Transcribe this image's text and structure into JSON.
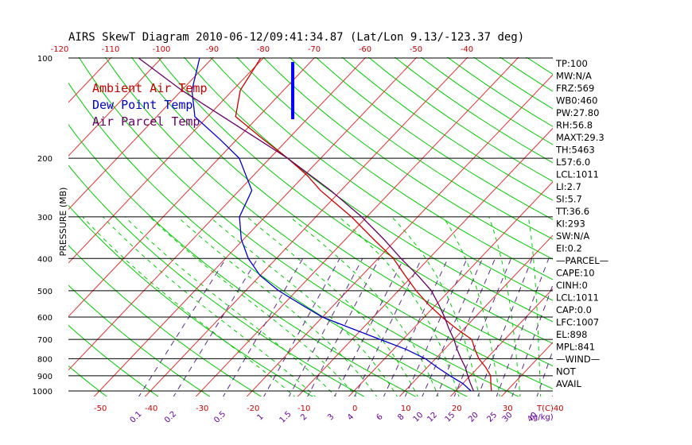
{
  "title": "AIRS SkewT Diagram 2010-06-12/09:41:34.87 (Lat/Lon 9.13/-123.37 deg)",
  "colors": {
    "ambient": "#cc0000",
    "dewpoint": "#0000cc",
    "parcel": "#660066",
    "grid_green": "#00cc00",
    "isotherm_red": "#dd3333",
    "mixing_purple": "#5a2a8a",
    "axis_red": "#cc0000",
    "mixing_label": "#660099",
    "isobar": "#000000"
  },
  "legend": {
    "ambient": "Ambient Air Temp",
    "dewpoint": "Dew Point Temp",
    "parcel": "Air Parcel Temp"
  },
  "chart_data": {
    "type": "line",
    "title": "AIRS SkewT Diagram 2010-06-12/09:41:34.87 (Lat/Lon 9.13/-123.37 deg)",
    "ylabel": "PRESSURE (MB)",
    "xlabel": "T(C)",
    "mixing_ratio_unit": "(g/kg)",
    "pressure_range": [
      1000,
      100
    ],
    "y_scale": "log",
    "pressure_levels": [
      100,
      200,
      300,
      400,
      500,
      600,
      700,
      800,
      900,
      1000
    ],
    "top_temp_ticks": [
      -120,
      -110,
      -100,
      -90,
      -80,
      -70,
      -60,
      -50,
      -40
    ],
    "bottom_temp_ticks": [
      -50,
      -40,
      -30,
      -20,
      -10,
      0,
      10,
      20,
      30,
      40
    ],
    "bottom_temp_labels": [
      "-50",
      "-40",
      "-30",
      "-20",
      "-10",
      "0",
      "10",
      "20",
      "30",
      "40"
    ],
    "mixing_ratio_labels": [
      "0.1",
      "0.2",
      "0.5",
      "1",
      "1.5",
      "2",
      "3",
      "4",
      "6",
      "8",
      "10",
      "12",
      "15",
      "20",
      "25",
      "30",
      "40"
    ],
    "series": [
      {
        "name": "Ambient Air Temp",
        "points": [
          [
            1000,
            27.0
          ],
          [
            950,
            25.5
          ],
          [
            900,
            24.0
          ],
          [
            850,
            21.5
          ],
          [
            800,
            18.5
          ],
          [
            750,
            16.0
          ],
          [
            700,
            13.5
          ],
          [
            650,
            8.5
          ],
          [
            600,
            3.5
          ],
          [
            550,
            -1.5
          ],
          [
            500,
            -6.5
          ],
          [
            450,
            -11.5
          ],
          [
            400,
            -17.0
          ],
          [
            350,
            -24.5
          ],
          [
            300,
            -33.0
          ],
          [
            250,
            -44.0
          ],
          [
            225,
            -49.5
          ],
          [
            200,
            -56.5
          ],
          [
            175,
            -65.0
          ],
          [
            150,
            -74.5
          ],
          [
            125,
            -78.5
          ],
          [
            100,
            -80.5
          ]
        ]
      },
      {
        "name": "Dew Point Temp",
        "points": [
          [
            1000,
            23.0
          ],
          [
            950,
            20.0
          ],
          [
            900,
            16.0
          ],
          [
            850,
            12.0
          ],
          [
            800,
            8.0
          ],
          [
            750,
            2.5
          ],
          [
            700,
            -4.5
          ],
          [
            650,
            -12.0
          ],
          [
            600,
            -20.0
          ],
          [
            550,
            -26.5
          ],
          [
            500,
            -33.5
          ],
          [
            450,
            -40.0
          ],
          [
            400,
            -45.5
          ],
          [
            350,
            -50.5
          ],
          [
            300,
            -55.0
          ],
          [
            250,
            -57.5
          ],
          [
            200,
            -66.0
          ],
          [
            175,
            -73.5
          ],
          [
            150,
            -82.5
          ],
          [
            125,
            -88.0
          ],
          [
            100,
            -92.5
          ]
        ]
      },
      {
        "name": "Air Parcel Temp",
        "points": [
          [
            1000,
            23.5
          ],
          [
            950,
            21.5
          ],
          [
            900,
            19.5
          ],
          [
            850,
            17.5
          ],
          [
            800,
            15.0
          ],
          [
            750,
            12.5
          ],
          [
            700,
            10.0
          ],
          [
            650,
            7.0
          ],
          [
            600,
            4.0
          ],
          [
            550,
            0.5
          ],
          [
            500,
            -3.5
          ],
          [
            450,
            -9.0
          ],
          [
            400,
            -15.5
          ],
          [
            350,
            -22.5
          ],
          [
            300,
            -31.0
          ],
          [
            250,
            -42.0
          ],
          [
            200,
            -56.5
          ],
          [
            175,
            -66.0
          ],
          [
            150,
            -77.0
          ],
          [
            125,
            -90.0
          ],
          [
            100,
            -104.5
          ]
        ]
      }
    ]
  },
  "indices": [
    "TP:100",
    "MW:N/A",
    "FRZ:569",
    "WB0:460",
    "PW:27.80",
    "RH:56.8",
    "MAXT:29.3",
    "TH:5463",
    "L57:6.0",
    "LCL:1011",
    "LI:2.7",
    "SI:5.7",
    "TT:36.6",
    "KI:293",
    "SW:N/A",
    "EI:0.2",
    "—PARCEL—",
    "CAPE:10",
    "CINH:0",
    "LCL:1011",
    "CAP:0.0",
    "LFC:1007",
    "EL:898",
    "MPL:841",
    "—WIND—",
    "NOT",
    "AVAIL"
  ]
}
